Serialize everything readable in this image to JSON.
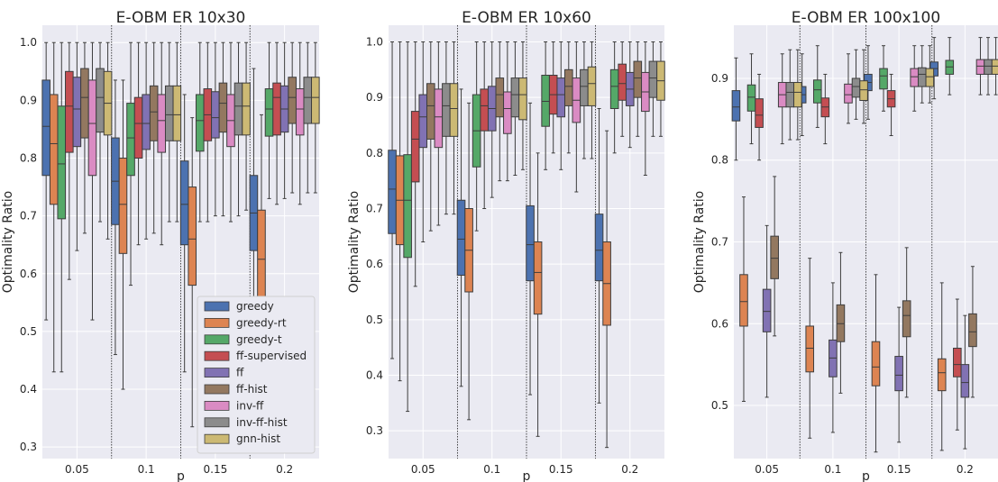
{
  "chart_data": [
    {
      "type": "box",
      "title": "E-OBM ER 10x30",
      "xlabel": "p",
      "ylabel": "Optimality Ratio",
      "categories": [
        "0.05",
        "0.1",
        "0.15",
        "0.2"
      ],
      "ylim": [
        0.28,
        1.03
      ],
      "yticks": [
        "0.3",
        "0.4",
        "0.5",
        "0.6",
        "0.7",
        "0.8",
        "0.9",
        "1.0"
      ],
      "grid": true,
      "legend": "lower-right",
      "series": [
        {
          "name": "greedy",
          "color": "#4c72b0",
          "boxes": [
            [
              0.52,
              0.77,
              0.855,
              0.935,
              1.0
            ],
            [
              0.46,
              0.685,
              0.76,
              0.835,
              0.935
            ],
            [
              0.43,
              0.65,
              0.72,
              0.795,
              0.91
            ],
            [
              0.38,
              0.64,
              0.705,
              0.77,
              0.955
            ]
          ]
        },
        {
          "name": "greedy-rt",
          "color": "#dd8452",
          "boxes": [
            [
              0.43,
              0.72,
              0.825,
              0.91,
              1.0
            ],
            [
              0.4,
              0.635,
              0.72,
              0.8,
              0.935
            ],
            [
              0.335,
              0.58,
              0.66,
              0.75,
              0.87
            ],
            [
              0.29,
              0.555,
              0.625,
              0.71,
              0.875
            ]
          ]
        },
        {
          "name": "greedy-t",
          "color": "#55a868",
          "boxes": [
            [
              0.43,
              0.695,
              0.79,
              0.89,
              1.0
            ],
            [
              0.58,
              0.77,
              0.835,
              0.895,
              1.0
            ],
            [
              0.69,
              0.812,
              0.865,
              0.91,
              1.0
            ],
            [
              0.73,
              0.838,
              0.885,
              0.92,
              1.0
            ]
          ]
        },
        {
          "name": "ff-supervised",
          "color": "#c44e52",
          "boxes": [
            [
              0.59,
              0.81,
              0.89,
              0.95,
              1.0
            ],
            [
              0.65,
              0.8,
              0.86,
              0.905,
              1.0
            ],
            [
              0.69,
              0.83,
              0.875,
              0.92,
              1.0
            ],
            [
              0.72,
              0.84,
              0.905,
              0.93,
              1.0
            ]
          ]
        },
        {
          "name": "ff",
          "color": "#8172b3",
          "boxes": [
            [
              0.64,
              0.82,
              0.885,
              0.94,
              1.0
            ],
            [
              0.66,
              0.815,
              0.86,
              0.91,
              1.0
            ],
            [
              0.7,
              0.835,
              0.87,
              0.915,
              1.0
            ],
            [
              0.73,
              0.845,
              0.885,
              0.925,
              1.0
            ]
          ]
        },
        {
          "name": "ff-hist",
          "color": "#937860",
          "boxes": [
            [
              0.67,
              0.835,
              0.905,
              0.955,
              1.0
            ],
            [
              0.67,
              0.83,
              0.88,
              0.925,
              1.0
            ],
            [
              0.7,
              0.845,
              0.895,
              0.93,
              1.0
            ],
            [
              0.74,
              0.86,
              0.905,
              0.94,
              1.0
            ]
          ]
        },
        {
          "name": "inv-ff",
          "color": "#da8bc3",
          "boxes": [
            [
              0.52,
              0.77,
              0.86,
              0.935,
              1.0
            ],
            [
              0.65,
              0.81,
              0.865,
              0.91,
              1.0
            ],
            [
              0.69,
              0.82,
              0.865,
              0.91,
              1.0
            ],
            [
              0.72,
              0.84,
              0.885,
              0.92,
              1.0
            ]
          ]
        },
        {
          "name": "inv-ff-hist",
          "color": "#8c8c8c",
          "boxes": [
            [
              0.69,
              0.845,
              0.905,
              0.955,
              1.0
            ],
            [
              0.69,
              0.83,
              0.875,
              0.925,
              1.0
            ],
            [
              0.7,
              0.84,
              0.89,
              0.93,
              1.0
            ],
            [
              0.74,
              0.86,
              0.905,
              0.94,
              1.0
            ]
          ]
        },
        {
          "name": "gnn-hist",
          "color": "#ccb974",
          "boxes": [
            [
              0.66,
              0.84,
              0.895,
              0.95,
              1.0
            ],
            [
              0.69,
              0.83,
              0.875,
              0.925,
              1.0
            ],
            [
              0.71,
              0.84,
              0.89,
              0.93,
              1.0
            ],
            [
              0.74,
              0.86,
              0.905,
              0.94,
              1.0
            ]
          ]
        }
      ]
    },
    {
      "type": "box",
      "title": "E-OBM ER 10x60",
      "xlabel": "p",
      "ylabel": "Optimality Ratio",
      "categories": [
        "0.05",
        "0.1",
        "0.15",
        "0.2"
      ],
      "ylim": [
        0.25,
        1.03
      ],
      "yticks": [
        "0.3",
        "0.4",
        "0.5",
        "0.6",
        "0.7",
        "0.8",
        "0.9",
        "1.0"
      ],
      "grid": true,
      "series": [
        {
          "name": "greedy",
          "color": "#4c72b0",
          "boxes": [
            [
              0.43,
              0.655,
              0.735,
              0.805,
              1.0
            ],
            [
              0.38,
              0.58,
              0.645,
              0.715,
              0.915
            ],
            [
              0.365,
              0.57,
              0.635,
              0.705,
              0.89
            ],
            [
              0.35,
              0.57,
              0.625,
              0.69,
              0.88
            ]
          ]
        },
        {
          "name": "greedy-rt",
          "color": "#dd8452",
          "boxes": [
            [
              0.39,
              0.635,
              0.715,
              0.795,
              1.0
            ],
            [
              0.32,
              0.55,
              0.625,
              0.7,
              0.89
            ],
            [
              0.29,
              0.51,
              0.585,
              0.64,
              0.8
            ],
            [
              0.27,
              0.49,
              0.565,
              0.64,
              0.84
            ]
          ]
        },
        {
          "name": "greedy-t",
          "color": "#55a868",
          "boxes": [
            [
              0.335,
              0.612,
              0.715,
              0.797,
              1.0
            ],
            [
              0.66,
              0.775,
              0.84,
              0.905,
              1.0
            ],
            [
              0.77,
              0.848,
              0.893,
              0.94,
              1.0
            ],
            [
              0.8,
              0.88,
              0.92,
              0.95,
              1.0
            ]
          ]
        },
        {
          "name": "ff-supervised",
          "color": "#c44e52",
          "boxes": [
            [
              0.56,
              0.748,
              0.825,
              0.875,
              1.0
            ],
            [
              0.7,
              0.84,
              0.885,
              0.915,
              1.0
            ],
            [
              0.8,
              0.87,
              0.905,
              0.94,
              1.0
            ],
            [
              0.83,
              0.895,
              0.925,
              0.96,
              1.0
            ]
          ]
        },
        {
          "name": "ff",
          "color": "#8172b3",
          "boxes": [
            [
              0.64,
              0.81,
              0.865,
              0.905,
              1.0
            ],
            [
              0.72,
              0.84,
              0.88,
              0.92,
              1.0
            ],
            [
              0.77,
              0.865,
              0.905,
              0.935,
              1.0
            ],
            [
              0.81,
              0.885,
              0.915,
              0.945,
              1.0
            ]
          ]
        },
        {
          "name": "ff-hist",
          "color": "#937860",
          "boxes": [
            [
              0.66,
              0.825,
              0.885,
              0.925,
              1.0
            ],
            [
              0.75,
              0.865,
              0.905,
              0.935,
              1.0
            ],
            [
              0.8,
              0.885,
              0.92,
              0.95,
              1.0
            ],
            [
              0.83,
              0.9,
              0.935,
              0.965,
              1.0
            ]
          ]
        },
        {
          "name": "inv-ff",
          "color": "#da8bc3",
          "boxes": [
            [
              0.67,
              0.81,
              0.865,
              0.915,
              1.0
            ],
            [
              0.75,
              0.835,
              0.88,
              0.91,
              1.0
            ],
            [
              0.73,
              0.855,
              0.895,
              0.935,
              1.0
            ],
            [
              0.76,
              0.875,
              0.91,
              0.945,
              1.0
            ]
          ]
        },
        {
          "name": "inv-ff-hist",
          "color": "#8c8c8c",
          "boxes": [
            [
              0.69,
              0.83,
              0.885,
              0.925,
              1.0
            ],
            [
              0.76,
              0.865,
              0.905,
              0.935,
              1.0
            ],
            [
              0.79,
              0.885,
              0.92,
              0.95,
              1.0
            ],
            [
              0.83,
              0.9,
              0.935,
              0.965,
              1.0
            ]
          ]
        },
        {
          "name": "gnn-hist",
          "color": "#ccb974",
          "boxes": [
            [
              0.69,
              0.83,
              0.88,
              0.925,
              1.0
            ],
            [
              0.77,
              0.86,
              0.905,
              0.935,
              1.0
            ],
            [
              0.79,
              0.885,
              0.925,
              0.955,
              1.0
            ],
            [
              0.83,
              0.895,
              0.93,
              0.965,
              1.0
            ]
          ]
        }
      ]
    },
    {
      "type": "box",
      "title": "E-OBM ER 100x100",
      "xlabel": "p",
      "ylabel": "Optimality Ratio",
      "categories": [
        "0.05",
        "0.1",
        "0.15",
        "0.2"
      ],
      "ylim": [
        0.435,
        0.965
      ],
      "yticks": [
        "0.5",
        "0.6",
        "0.7",
        "0.8",
        "0.9"
      ],
      "grid": true,
      "series": [
        {
          "name": "greedy",
          "color": "#4c72b0",
          "boxes": [
            [
              0.8,
              0.848,
              0.865,
              0.885,
              0.925
            ],
            [
              0.83,
              0.87,
              0.88,
              0.89,
              0.93
            ],
            [
              0.85,
              0.885,
              0.895,
              0.905,
              0.94
            ],
            [
              0.875,
              0.903,
              0.912,
              0.92,
              0.95
            ]
          ]
        },
        {
          "name": "greedy-rt",
          "color": "#dd8452",
          "boxes": [
            [
              0.505,
              0.597,
              0.627,
              0.66,
              0.755
            ],
            [
              0.46,
              0.541,
              0.57,
              0.597,
              0.68
            ],
            [
              0.443,
              0.524,
              0.547,
              0.578,
              0.66
            ],
            [
              0.445,
              0.518,
              0.54,
              0.557,
              0.65
            ]
          ]
        },
        {
          "name": "greedy-t",
          "color": "#55a868",
          "boxes": [
            [
              0.82,
              0.86,
              0.877,
              0.892,
              0.93
            ],
            [
              0.84,
              0.87,
              0.886,
              0.898,
              0.94
            ],
            [
              0.86,
              0.887,
              0.903,
              0.912,
              0.94
            ],
            [
              0.88,
              0.905,
              0.914,
              0.922,
              0.95
            ]
          ]
        },
        {
          "name": "ff-supervised",
          "color": "#c44e52",
          "boxes": [
            [
              0.8,
              0.84,
              0.855,
              0.875,
              0.905
            ],
            [
              0.82,
              0.853,
              0.865,
              0.876,
              0.905
            ],
            [
              0.83,
              0.865,
              0.875,
              0.885,
              0.905
            ],
            [
              0.47,
              0.535,
              0.55,
              0.57,
              0.63
            ]
          ]
        },
        {
          "name": "ff",
          "color": "#8172b3",
          "boxes": [
            [
              0.51,
              0.59,
              0.615,
              0.642,
              0.72
            ],
            [
              0.467,
              0.535,
              0.558,
              0.58,
              0.65
            ],
            [
              0.455,
              0.518,
              0.537,
              0.56,
              0.62
            ],
            [
              0.447,
              0.51,
              0.528,
              0.55,
              0.61
            ]
          ]
        },
        {
          "name": "ff-hist",
          "color": "#937860",
          "boxes": [
            [
              0.585,
              0.655,
              0.68,
              0.707,
              0.78
            ],
            [
              0.515,
              0.578,
              0.6,
              0.623,
              0.687
            ],
            [
              0.51,
              0.584,
              0.61,
              0.628,
              0.693
            ],
            [
              0.51,
              0.572,
              0.59,
              0.612,
              0.67
            ]
          ]
        },
        {
          "name": "inv-ff",
          "color": "#da8bc3",
          "boxes": [
            [
              0.82,
              0.865,
              0.88,
              0.895,
              0.93
            ],
            [
              0.845,
              0.87,
              0.88,
              0.893,
              0.93
            ],
            [
              0.86,
              0.89,
              0.902,
              0.912,
              0.94
            ],
            [
              0.88,
              0.905,
              0.915,
              0.923,
              0.95
            ]
          ]
        },
        {
          "name": "inv-ff-hist",
          "color": "#8c8c8c",
          "boxes": [
            [
              0.825,
              0.865,
              0.883,
              0.895,
              0.935
            ],
            [
              0.85,
              0.877,
              0.89,
              0.9,
              0.935
            ],
            [
              0.87,
              0.89,
              0.905,
              0.913,
              0.94
            ],
            [
              0.88,
              0.905,
              0.915,
              0.923,
              0.95
            ]
          ]
        },
        {
          "name": "gnn-hist",
          "color": "#ccb974",
          "boxes": [
            [
              0.825,
              0.865,
              0.883,
              0.895,
              0.935
            ],
            [
              0.845,
              0.873,
              0.886,
              0.897,
              0.935
            ],
            [
              0.87,
              0.89,
              0.902,
              0.912,
              0.94
            ],
            [
              0.88,
              0.905,
              0.915,
              0.923,
              0.95
            ]
          ]
        }
      ]
    }
  ]
}
